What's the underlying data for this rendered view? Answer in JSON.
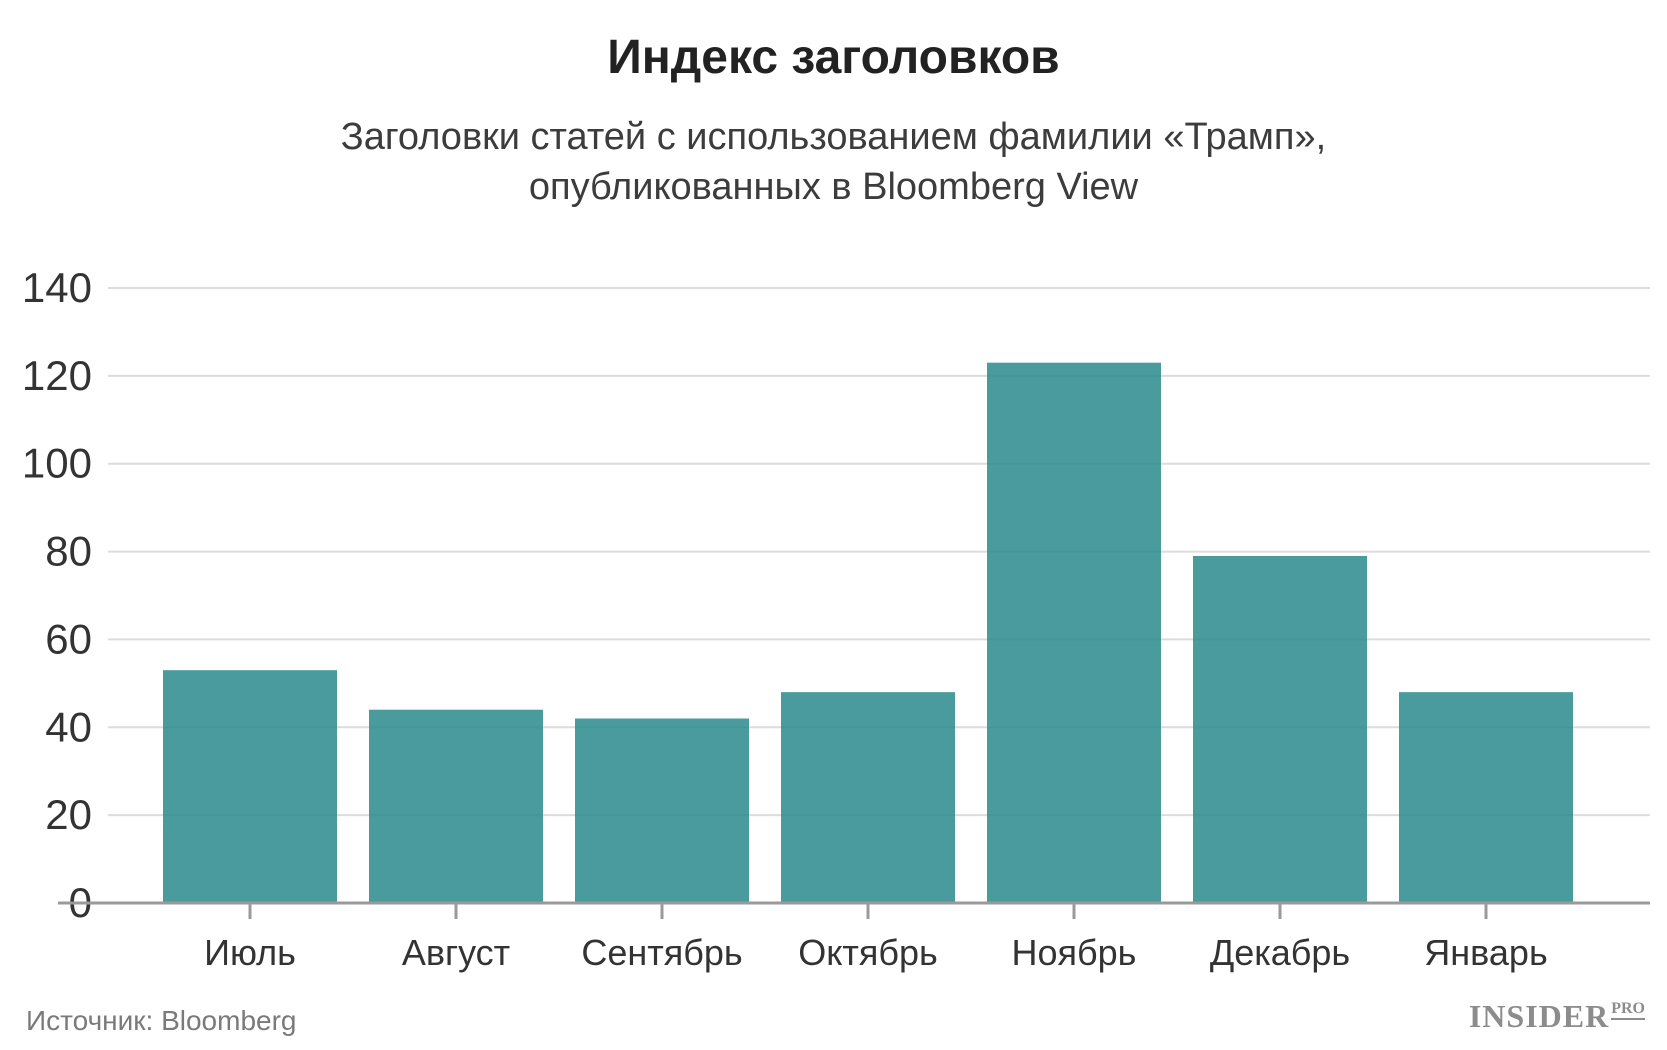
{
  "chart_data": {
    "type": "bar",
    "title": "Индекс заголовков",
    "subtitle_lines": [
      "Заголовки статей с использованием фамилии «Трамп»,",
      "опубликованных в Bloomberg View"
    ],
    "categories": [
      "Июль",
      "Август",
      "Сентябрь",
      "Октябрь",
      "Ноябрь",
      "Декабрь",
      "Январь"
    ],
    "values": [
      53,
      44,
      42,
      48,
      123,
      79,
      48
    ],
    "ylim": [
      0,
      140
    ],
    "yticks": [
      0,
      20,
      40,
      60,
      80,
      100,
      120,
      140
    ],
    "grid": true,
    "bar_color": "#2a8a8c",
    "source": "Источник: Bloomberg"
  },
  "branding": {
    "logo_text": "INSIDER",
    "logo_sup": "PRO"
  }
}
